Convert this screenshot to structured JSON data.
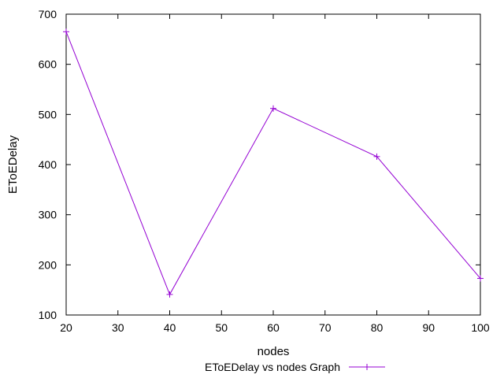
{
  "chart_data": {
    "type": "line",
    "title": "",
    "xlabel": "nodes",
    "ylabel": "EToEDelay",
    "xlim": [
      20,
      100
    ],
    "ylim": [
      100,
      700
    ],
    "xticks": [
      20,
      30,
      40,
      50,
      60,
      70,
      80,
      90,
      100
    ],
    "yticks": [
      100,
      200,
      300,
      400,
      500,
      600,
      700
    ],
    "grid": false,
    "legend_position": "bottom-center",
    "series": [
      {
        "name": "EToEDelay vs nodes Graph",
        "color": "#9400d3",
        "marker": "plus",
        "x": [
          20,
          40,
          60,
          80,
          100
        ],
        "y": [
          665,
          141,
          512,
          416,
          173
        ]
      }
    ]
  }
}
